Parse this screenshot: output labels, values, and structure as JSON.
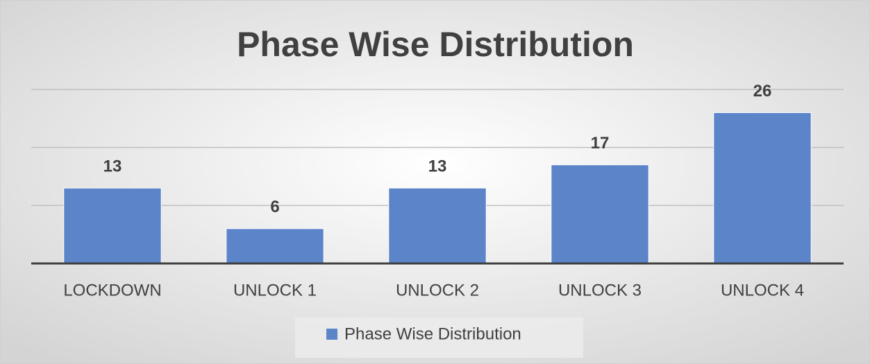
{
  "chart_data": {
    "type": "bar",
    "title": "Phase Wise Distribution",
    "categories": [
      "LOCKDOWN",
      "UNLOCK 1",
      "UNLOCK 2",
      "UNLOCK 3",
      "UNLOCK 4"
    ],
    "series": [
      {
        "name": "Phase Wise Distribution",
        "color": "#5b84c9",
        "values": [
          13,
          6,
          13,
          17,
          26
        ]
      }
    ],
    "ylim": [
      0,
      30
    ],
    "yticks": [
      0,
      10,
      20,
      30
    ],
    "grid": true,
    "legend": "bottom"
  }
}
